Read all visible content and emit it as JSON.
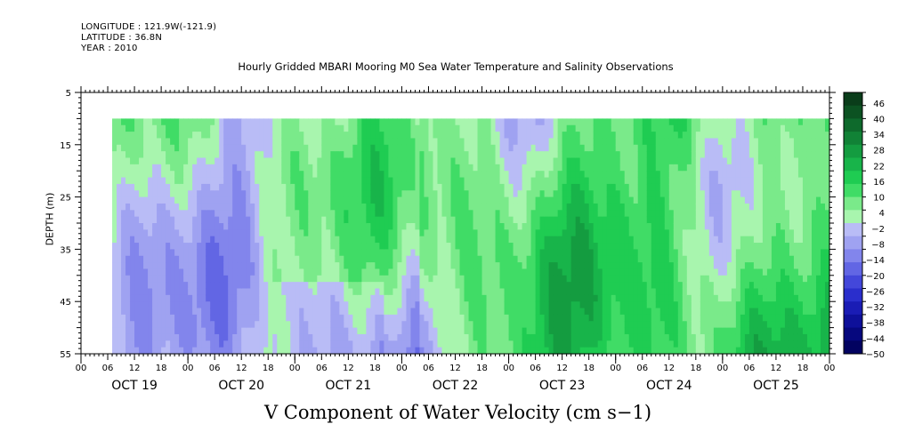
{
  "header": {
    "longitude": "LONGITUDE : 121.9W(-121.9)",
    "latitude": "LATITUDE : 36.8N",
    "year": "YEAR : 2010"
  },
  "chart_data": {
    "type": "heatmap",
    "title": "Hourly Gridded MBARI Mooring M0 Sea Water Temperature and Salinity Observations",
    "xlabel": "V Component of Water Velocity (cm s−1)",
    "ylabel": "DEPTH (m)",
    "y_ticks": [
      5,
      15,
      25,
      35,
      45,
      55
    ],
    "ylim": [
      5,
      55
    ],
    "y_inverted": true,
    "data_depth_range": [
      10,
      55
    ],
    "x_hour_ticks": [
      "00",
      "06",
      "12",
      "18",
      "00",
      "06",
      "12",
      "18",
      "00",
      "06",
      "12",
      "18",
      "00",
      "06",
      "12",
      "18",
      "00",
      "06",
      "12",
      "18",
      "00",
      "06",
      "12",
      "18",
      "00",
      "06",
      "12",
      "18",
      "00"
    ],
    "x_day_labels": [
      "OCT 19",
      "OCT 20",
      "OCT 21",
      "OCT 22",
      "OCT 23",
      "OCT 24",
      "OCT 25"
    ],
    "data_start_hour": 7,
    "colorbar": {
      "levels": [
        46,
        40,
        34,
        28,
        22,
        16,
        10,
        4,
        -2,
        -8,
        -14,
        -20,
        -26,
        -32,
        -38,
        -44,
        -50
      ],
      "min": -50,
      "max": 50,
      "colors": [
        "#0a3d1a",
        "#0c5222",
        "#0e6a2c",
        "#118236",
        "#149c40",
        "#18b44a",
        "#1fcc52",
        "#40dc66",
        "#7aea8a",
        "#a8f5ae",
        "#b9bcf6",
        "#9fa2f1",
        "#8285ec",
        "#6266e4",
        "#4347da",
        "#2a2ecc",
        "#1a1cb5",
        "#0e109a",
        "#06087e",
        "#020260"
      ]
    }
  }
}
